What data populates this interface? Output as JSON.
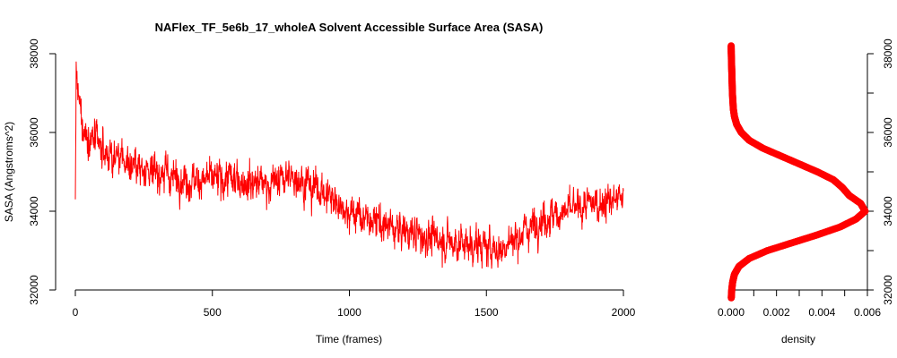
{
  "chart_data": [
    {
      "type": "line",
      "title": "NAFlex_TF_5e6b_17_wholeA Solvent Accessible Surface Area (SASA)",
      "xlabel": "Time (frames)",
      "ylabel": "SASA (Angstroms^2)",
      "xlim": [
        0,
        2000
      ],
      "ylim": [
        32000,
        38000
      ],
      "xticks": [
        "0",
        "500",
        "1000",
        "1500",
        "2000"
      ],
      "yticks": [
        "32000",
        "34000",
        "36000",
        "38000"
      ],
      "series_color": "#ff0000",
      "trend": {
        "x": [
          0,
          3,
          10,
          30,
          60,
          100,
          200,
          300,
          400,
          500,
          600,
          700,
          800,
          900,
          1000,
          1100,
          1200,
          1300,
          1400,
          1500,
          1550,
          1600,
          1700,
          1800,
          1900,
          2000
        ],
        "y": [
          34300,
          37700,
          36800,
          36000,
          35800,
          35500,
          35200,
          35000,
          34800,
          34800,
          34800,
          34700,
          34900,
          34500,
          34000,
          33700,
          33500,
          33300,
          33200,
          33100,
          33000,
          33300,
          33800,
          34000,
          34200,
          34300
        ]
      },
      "n_frames": 2000,
      "fluctuation_sd": 400
    },
    {
      "type": "line",
      "title": "",
      "xlabel": "density",
      "ylabel": "",
      "xlim": [
        0,
        0.006
      ],
      "ylim": [
        32000,
        38000
      ],
      "xticks": [
        "0.000",
        "0.002",
        "0.004",
        "0.006"
      ],
      "yticks": [
        "32000",
        "34000",
        "36000",
        "38000"
      ],
      "series_color": "#ff0000",
      "y": [
        31800,
        32000,
        32200,
        32400,
        32600,
        32800,
        33000,
        33200,
        33400,
        33600,
        33800,
        34000,
        34200,
        34400,
        34600,
        34800,
        35000,
        35200,
        35400,
        35600,
        35800,
        36000,
        36200,
        36400,
        36600,
        36800,
        37000,
        37200,
        37400,
        37600,
        37800,
        38000,
        38200
      ],
      "x": [
        1e-05,
        3e-05,
        7e-05,
        0.00015,
        0.00035,
        0.0008,
        0.0016,
        0.0027,
        0.0038,
        0.0048,
        0.0055,
        0.0059,
        0.0057,
        0.0052,
        0.0049,
        0.0045,
        0.0038,
        0.003,
        0.0022,
        0.0014,
        0.0008,
        0.00045,
        0.00025,
        0.00015,
        0.0001,
        8e-05,
        6e-05,
        5e-05,
        4e-05,
        3e-05,
        2e-05,
        1e-05,
        5e-06
      ]
    }
  ]
}
